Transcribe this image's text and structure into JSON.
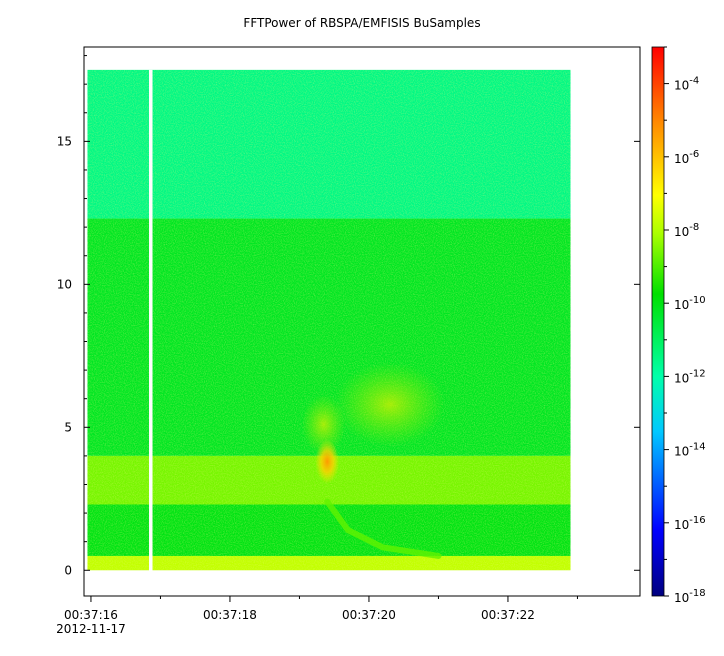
{
  "chart_data": {
    "type": "heatmap",
    "title": "FFTPower of RBSPA/EMFISIS  BuSamples",
    "xlabel": "",
    "ylabel": "",
    "x_axis": {
      "ticks": [
        "00:37:16",
        "00:37:18",
        "00:37:20",
        "00:37:22"
      ],
      "tick_values_s": [
        0,
        2,
        4,
        6
      ],
      "minor_tick_values_s": [
        1,
        3,
        5,
        7
      ],
      "range_s": [
        -0.1,
        7.9
      ],
      "date_label": "2012-11-17"
    },
    "y_axis": {
      "ticks": [
        "0",
        "5",
        "10",
        "15"
      ],
      "tick_values": [
        0,
        5,
        10,
        15
      ],
      "range": [
        -0.9,
        18.3
      ]
    },
    "colorbar": {
      "scale": "log",
      "range": [
        1e-18,
        0.001
      ],
      "tick_exponents": [
        -18,
        -16,
        -14,
        -12,
        -10,
        -8,
        -6,
        -4
      ],
      "tick_base": "10"
    },
    "data_extent": {
      "x_s": [
        -0.05,
        6.9
      ],
      "y": [
        0,
        17.5
      ],
      "data_gap_x_s": [
        0.85,
        0.95
      ]
    },
    "regions": [
      {
        "desc": "background above 12.3",
        "y": [
          12.3,
          17.5
        ],
        "log10_power": -11.5
      },
      {
        "desc": "background 4 to 12.3",
        "y": [
          4.0,
          12.3
        ],
        "log10_power": -10.2
      },
      {
        "desc": "band 2.3 to 4",
        "y": [
          2.3,
          4.0
        ],
        "log10_power": -8.6
      },
      {
        "desc": "band 0.5 to 2.3",
        "y": [
          0.5,
          2.3
        ],
        "log10_power": -10.0
      },
      {
        "desc": "band 0 to 0.5",
        "y": [
          0.0,
          0.5
        ],
        "log10_power": -7.8
      }
    ],
    "features": [
      {
        "desc": "enhancement near 00:37:19.4, 3.8",
        "x_s": 3.4,
        "y": 3.8,
        "log10_power": -7.0
      },
      {
        "desc": "diffuse enhancement near 00:37:20.3",
        "x_s": 4.3,
        "y": 5.8,
        "log10_power": -9.3
      },
      {
        "desc": "falling-tone trace",
        "points_s_y": [
          [
            3.4,
            2.4
          ],
          [
            3.7,
            1.4
          ],
          [
            4.2,
            0.8
          ],
          [
            5.0,
            0.5
          ]
        ],
        "log10_power": -8.8
      }
    ]
  }
}
